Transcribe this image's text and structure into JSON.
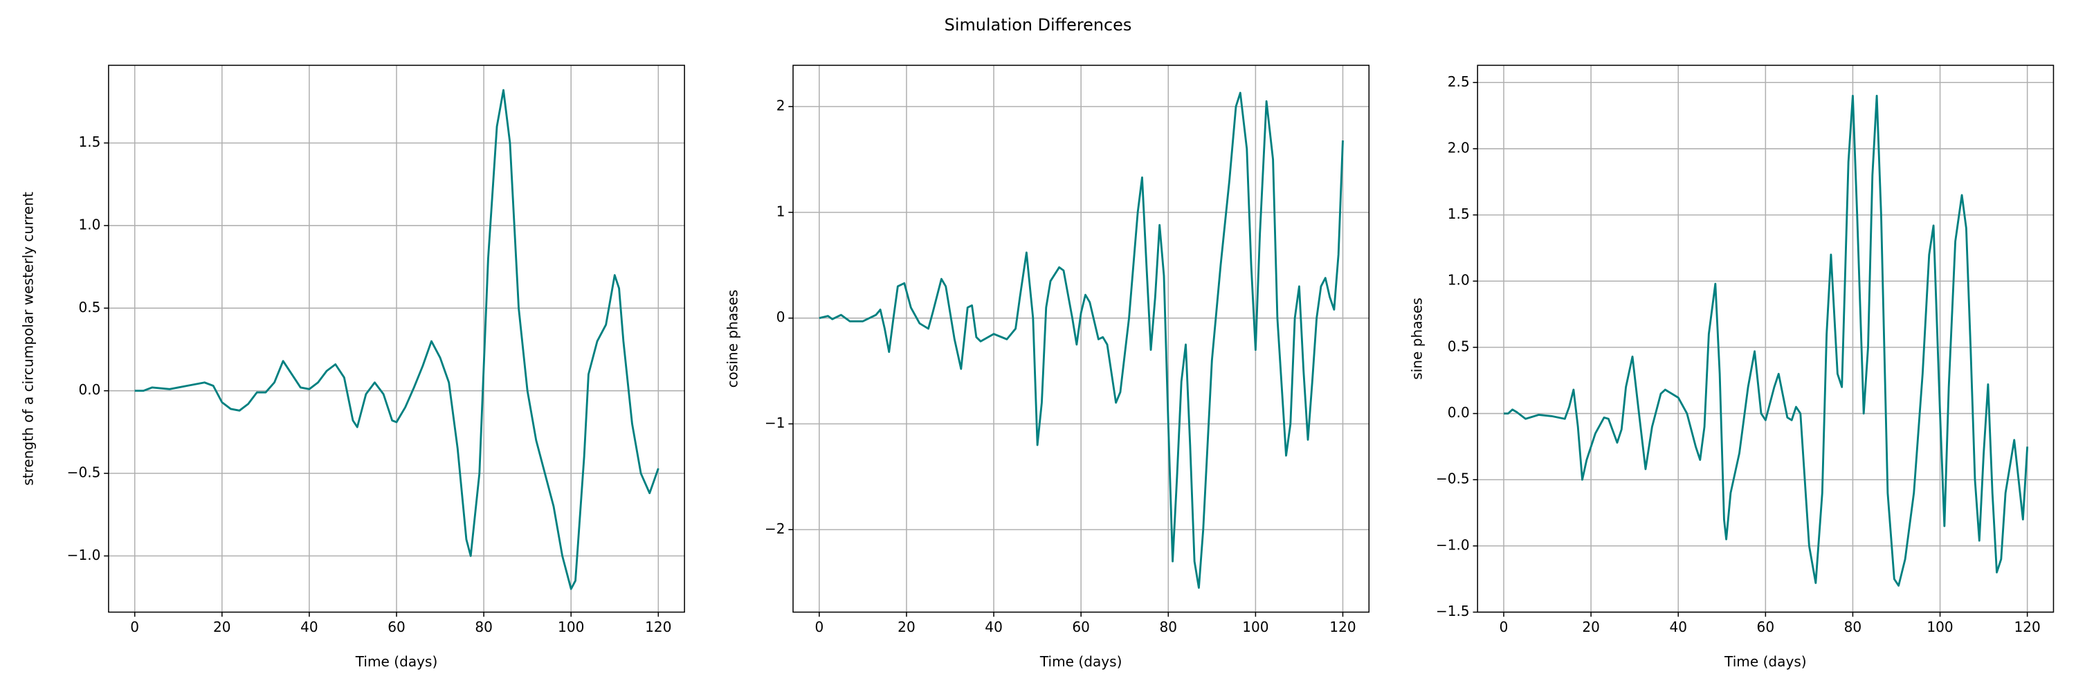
{
  "title": "Simulation Differences",
  "chart_data": [
    {
      "type": "line",
      "xlabel": "Time (days)",
      "ylabel": "strength of a circumpolar westerly current",
      "color": "#008080",
      "grid": true,
      "xlim": [
        -6,
        126
      ],
      "ylim": [
        -1.34,
        1.97
      ],
      "xticks": [
        0,
        20,
        40,
        60,
        80,
        100,
        120
      ],
      "yticks": [
        {
          "value": -1.0,
          "label": "−1.0"
        },
        {
          "value": -0.5,
          "label": "−0.5"
        },
        {
          "value": 0.0,
          "label": "0.0"
        },
        {
          "value": 0.5,
          "label": "0.5"
        },
        {
          "value": 1.0,
          "label": "1.0"
        },
        {
          "value": 1.5,
          "label": "1.5"
        }
      ],
      "x": [
        0,
        2,
        4,
        8,
        12,
        16,
        18,
        20,
        22,
        24,
        26,
        28,
        30,
        32,
        34,
        36,
        38,
        40,
        42,
        44,
        46,
        48,
        50,
        51,
        53,
        55,
        57,
        59,
        60,
        62,
        64,
        66,
        68,
        70,
        72,
        74,
        76,
        77,
        79,
        81,
        83,
        84.5,
        86,
        88,
        90,
        92,
        94,
        96,
        98,
        100,
        101,
        103,
        104,
        106,
        108,
        110,
        111,
        112,
        114,
        116,
        118,
        120
      ],
      "values": [
        0,
        0,
        0.02,
        0.01,
        0.03,
        0.05,
        0.03,
        -0.07,
        -0.11,
        -0.12,
        -0.08,
        -0.01,
        -0.01,
        0.05,
        0.18,
        0.1,
        0.02,
        0.01,
        0.05,
        0.12,
        0.16,
        0.08,
        -0.18,
        -0.22,
        -0.02,
        0.05,
        -0.02,
        -0.18,
        -0.19,
        -0.1,
        0.02,
        0.15,
        0.3,
        0.2,
        0.05,
        -0.35,
        -0.9,
        -1.0,
        -0.5,
        0.8,
        1.6,
        1.82,
        1.5,
        0.5,
        0.0,
        -0.3,
        -0.5,
        -0.7,
        -1.0,
        -1.2,
        -1.15,
        -0.4,
        0.1,
        0.3,
        0.4,
        0.7,
        0.62,
        0.3,
        -0.2,
        -0.5,
        -0.62,
        -0.47
      ]
    },
    {
      "type": "line",
      "xlabel": "Time (days)",
      "ylabel": "cosine phases",
      "color": "#008080",
      "grid": true,
      "xlim": [
        -6,
        126
      ],
      "ylim": [
        -2.78,
        2.39
      ],
      "xticks": [
        0,
        20,
        40,
        60,
        80,
        100,
        120
      ],
      "yticks": [
        {
          "value": -2,
          "label": "−2"
        },
        {
          "value": -1,
          "label": "−1"
        },
        0,
        1,
        2
      ],
      "x": [
        0,
        2,
        3,
        5,
        7,
        10,
        13,
        14,
        15,
        16,
        17,
        18,
        19.5,
        21,
        23,
        25,
        26,
        28,
        29,
        31,
        32.5,
        34,
        35,
        36,
        37,
        40,
        43,
        45,
        46,
        47.5,
        49,
        50,
        51,
        52,
        53,
        55,
        56,
        58,
        59,
        60,
        61,
        62,
        64,
        65,
        66,
        68,
        69,
        71,
        73,
        74,
        75,
        76,
        77,
        78,
        79,
        80,
        81,
        82,
        83,
        84,
        85,
        86,
        87,
        88,
        90,
        92,
        94,
        95.5,
        96.5,
        98,
        99,
        100,
        101,
        102.5,
        104,
        105,
        107,
        108,
        109,
        110,
        111,
        112,
        113,
        114,
        115,
        116,
        117,
        118,
        119,
        120
      ],
      "values": [
        0,
        0.02,
        -0.01,
        0.03,
        -0.03,
        -0.03,
        0.03,
        0.08,
        -0.1,
        -0.32,
        0.0,
        0.3,
        0.33,
        0.1,
        -0.05,
        -0.1,
        0.05,
        0.37,
        0.3,
        -0.2,
        -0.48,
        0.1,
        0.12,
        -0.18,
        -0.22,
        -0.15,
        -0.2,
        -0.1,
        0.2,
        0.62,
        0.0,
        -1.2,
        -0.8,
        0.1,
        0.35,
        0.48,
        0.45,
        0,
        -0.25,
        0.05,
        0.22,
        0.15,
        -0.2,
        -0.18,
        -0.25,
        -0.8,
        -0.7,
        0,
        1.0,
        1.33,
        0.5,
        -0.3,
        0.2,
        0.88,
        0.4,
        -1.0,
        -2.3,
        -1.5,
        -0.6,
        -0.25,
        -1.2,
        -2.3,
        -2.55,
        -2.0,
        -0.4,
        0.5,
        1.3,
        2.0,
        2.13,
        1.6,
        0.5,
        -0.3,
        0.8,
        2.05,
        1.5,
        0.0,
        -1.3,
        -1.0,
        0.0,
        0.3,
        -0.5,
        -1.15,
        -0.6,
        0.0,
        0.3,
        0.38,
        0.2,
        0.08,
        0.6,
        1.68
      ]
    },
    {
      "type": "line",
      "xlabel": "Time (days)",
      "ylabel": "sine phases",
      "color": "#008080",
      "grid": true,
      "xlim": [
        -6,
        126
      ],
      "ylim": [
        -1.5,
        2.63
      ],
      "xticks": [
        0,
        20,
        40,
        60,
        80,
        100,
        120
      ],
      "yticks": [
        {
          "value": -1.5,
          "label": "−1.5"
        },
        {
          "value": -1.0,
          "label": "−1.0"
        },
        {
          "value": -0.5,
          "label": "−0.5"
        },
        {
          "value": 0.0,
          "label": "0.0"
        },
        {
          "value": 0.5,
          "label": "0.5"
        },
        {
          "value": 1.0,
          "label": "1.0"
        },
        {
          "value": 1.5,
          "label": "1.5"
        },
        {
          "value": 2.0,
          "label": "2.0"
        },
        {
          "value": 2.5,
          "label": "2.5"
        }
      ],
      "x": [
        0,
        1,
        2,
        3,
        5,
        8,
        11,
        14,
        15,
        16,
        17,
        18,
        19,
        21,
        23,
        24,
        26,
        27,
        28,
        29.5,
        31,
        32.5,
        34,
        36,
        37,
        40,
        42,
        44,
        45,
        46,
        47,
        48.5,
        49.5,
        50.5,
        51,
        52,
        54,
        56,
        57.5,
        59,
        60,
        62,
        63,
        65,
        66,
        67,
        68,
        70,
        71.5,
        73,
        74,
        75,
        76.5,
        77.5,
        79,
        80,
        81,
        82.5,
        83.5,
        84.5,
        85.5,
        86.5,
        88,
        89.5,
        90.5,
        92,
        94,
        96,
        97.5,
        98.5,
        100,
        101,
        102,
        103.5,
        105,
        106,
        107,
        108,
        109,
        110,
        111,
        112,
        113,
        114,
        115,
        117,
        118,
        119,
        120
      ],
      "values": [
        0,
        0.0,
        0.03,
        0.01,
        -0.04,
        -0.01,
        -0.02,
        -0.04,
        0.05,
        0.18,
        -0.1,
        -0.5,
        -0.35,
        -0.15,
        -0.03,
        -0.04,
        -0.22,
        -0.12,
        0.2,
        0.43,
        0.0,
        -0.42,
        -0.1,
        0.15,
        0.18,
        0.12,
        0.0,
        -0.25,
        -0.35,
        -0.1,
        0.6,
        0.98,
        0.3,
        -0.8,
        -0.95,
        -0.6,
        -0.3,
        0.2,
        0.47,
        0.0,
        -0.05,
        0.2,
        0.3,
        -0.03,
        -0.05,
        0.05,
        0.0,
        -1.0,
        -1.28,
        -0.6,
        0.6,
        1.2,
        0.3,
        0.2,
        1.9,
        2.4,
        1.5,
        0.0,
        0.5,
        1.8,
        2.4,
        1.5,
        -0.6,
        -1.25,
        -1.3,
        -1.1,
        -0.6,
        0.3,
        1.2,
        1.42,
        0.0,
        -0.85,
        0.2,
        1.3,
        1.65,
        1.4,
        0.5,
        -0.5,
        -0.96,
        -0.3,
        0.22,
        -0.6,
        -1.2,
        -1.1,
        -0.6,
        -0.2,
        -0.5,
        -0.8,
        -0.25
      ]
    }
  ]
}
